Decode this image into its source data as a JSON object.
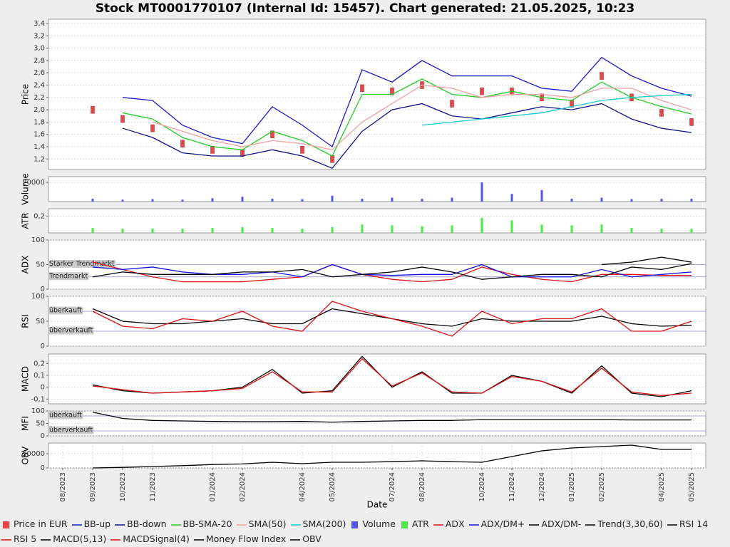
{
  "chart_data": [
    {
      "type": "line",
      "title": "Stock MT0001770107 (Internal Id: 15457). Chart generated: 21.05.2025, 10:23",
      "ylabel": "Price",
      "grid": true,
      "ylim": [
        1.03,
        3.47
      ],
      "yticks": [
        {
          "value": 1.2,
          "label": "1,2"
        },
        {
          "value": 1.4,
          "label": "1,4"
        },
        {
          "value": 1.6,
          "label": "1,6"
        },
        {
          "value": 1.8,
          "label": "1,8"
        },
        {
          "value": 2.0,
          "label": "2,0"
        },
        {
          "value": 2.2,
          "label": "2,2"
        },
        {
          "value": 2.4,
          "label": "2,4"
        },
        {
          "value": 2.6,
          "label": "2,6"
        },
        {
          "value": 2.8,
          "label": "2,8"
        },
        {
          "value": 3.0,
          "label": "3,0"
        },
        {
          "value": 3.2,
          "label": "3,2"
        },
        {
          "value": 3.4,
          "label": "3,4"
        }
      ],
      "xlim": [
        "08/2023",
        "05/2025"
      ],
      "x": [
        "08/2023",
        "09/2023",
        "10/2023",
        "11/2023",
        "12/2023",
        "01/2024",
        "02/2024",
        "03/2024",
        "04/2024",
        "05/2024",
        "06/2024",
        "07/2024",
        "08/2024",
        "09/2024",
        "10/2024",
        "11/2024",
        "12/2024",
        "01/2025",
        "02/2025",
        "03/2025",
        "04/2025",
        "05/2025"
      ],
      "series": [
        {
          "name": "Price in EUR",
          "style": "candles",
          "color": "#e8474a",
          "values": [
            null,
            2.0,
            1.85,
            1.7,
            1.45,
            1.35,
            1.3,
            1.6,
            1.35,
            1.2,
            2.35,
            2.3,
            2.4,
            2.1,
            2.3,
            2.3,
            2.2,
            2.1,
            2.55,
            2.2,
            1.95,
            1.8
          ]
        },
        {
          "name": "BB-up",
          "style": "line",
          "color": "#1a1acc",
          "values": [
            null,
            null,
            2.2,
            2.15,
            1.75,
            1.55,
            1.45,
            2.05,
            1.75,
            1.4,
            2.65,
            2.45,
            2.8,
            2.55,
            2.55,
            2.55,
            2.35,
            2.3,
            2.85,
            2.55,
            2.35,
            2.22
          ]
        },
        {
          "name": "BB-down",
          "style": "line",
          "color": "#10108a",
          "values": [
            null,
            null,
            1.7,
            1.55,
            1.3,
            1.25,
            1.25,
            1.35,
            1.25,
            1.05,
            1.65,
            2.0,
            2.1,
            1.9,
            1.85,
            1.95,
            2.05,
            2.0,
            2.1,
            1.85,
            1.7,
            1.63
          ]
        },
        {
          "name": "BB-SMA-20",
          "style": "line",
          "color": "#22cc22",
          "values": [
            null,
            null,
            1.95,
            1.85,
            1.55,
            1.4,
            1.35,
            1.65,
            1.5,
            1.25,
            2.25,
            2.25,
            2.5,
            2.25,
            2.2,
            2.3,
            2.2,
            2.15,
            2.45,
            2.2,
            2.05,
            1.93
          ]
        },
        {
          "name": "SMA(50)",
          "style": "line",
          "color": "#f0a0a0",
          "values": [
            null,
            null,
            null,
            1.8,
            1.65,
            1.5,
            1.4,
            1.5,
            1.45,
            1.35,
            1.8,
            2.1,
            2.4,
            2.35,
            2.2,
            2.25,
            2.25,
            2.2,
            2.35,
            2.35,
            2.15,
            2.0
          ]
        },
        {
          "name": "SMA(200)",
          "style": "line",
          "color": "#11cccc",
          "values": [
            null,
            null,
            null,
            null,
            null,
            null,
            null,
            null,
            null,
            null,
            null,
            null,
            1.75,
            1.8,
            1.85,
            1.9,
            1.95,
            2.05,
            2.15,
            2.2,
            2.23,
            2.25
          ]
        }
      ]
    },
    {
      "type": "line",
      "ylabel": "Volume",
      "grid": true,
      "ylim": [
        0,
        26000
      ],
      "yticks": [
        20000
      ],
      "xlim": [
        "08/2023",
        "05/2025"
      ],
      "x": [
        "08/2023",
        "09/2023",
        "10/2023",
        "11/2023",
        "12/2023",
        "01/2024",
        "02/2024",
        "03/2024",
        "04/2024",
        "05/2024",
        "06/2024",
        "07/2024",
        "08/2024",
        "09/2024",
        "10/2024",
        "11/2024",
        "12/2024",
        "01/2025",
        "02/2025",
        "03/2025",
        "04/2025",
        "05/2025"
      ],
      "series": [
        {
          "name": "Volume",
          "style": "bars",
          "color": "#5555ee",
          "values": [
            null,
            3000,
            2000,
            2500,
            2000,
            3500,
            5000,
            3000,
            2500,
            6000,
            3000,
            4000,
            3000,
            4000,
            20000,
            8000,
            12000,
            3000,
            4000,
            2500,
            3000,
            3000
          ]
        }
      ]
    },
    {
      "type": "line",
      "ylabel": "ATR",
      "grid": true,
      "ylim": [
        0,
        0.29
      ],
      "yticks": [
        {
          "value": 0.2,
          "label": "0,2"
        }
      ],
      "xlim": [
        "08/2023",
        "05/2025"
      ],
      "x": [
        "08/2023",
        "09/2023",
        "10/2023",
        "11/2023",
        "12/2023",
        "01/2024",
        "02/2024",
        "03/2024",
        "04/2024",
        "05/2024",
        "06/2024",
        "07/2024",
        "08/2024",
        "09/2024",
        "10/2024",
        "11/2024",
        "12/2024",
        "01/2025",
        "02/2025",
        "03/2025",
        "04/2025",
        "05/2025"
      ],
      "series": [
        {
          "name": "ATR",
          "style": "bars",
          "color": "#44ee44",
          "values": [
            null,
            0.06,
            0.05,
            0.05,
            0.05,
            0.06,
            0.07,
            0.06,
            0.05,
            0.07,
            0.1,
            0.09,
            0.08,
            0.09,
            0.18,
            0.15,
            0.1,
            0.09,
            0.1,
            0.06,
            0.05,
            0.05
          ]
        }
      ]
    },
    {
      "type": "line",
      "ylabel": "ADX",
      "grid": true,
      "ylim": [
        0,
        100
      ],
      "yticks": [
        0,
        50,
        100
      ],
      "xlim": [
        "08/2023",
        "05/2025"
      ],
      "hlines": [
        {
          "value": 50,
          "label": "Starker Trendmarkt"
        },
        {
          "value": 25,
          "label": "Trendmarkt"
        }
      ],
      "x": [
        "08/2023",
        "09/2023",
        "10/2023",
        "11/2023",
        "12/2023",
        "01/2024",
        "02/2024",
        "03/2024",
        "04/2024",
        "05/2024",
        "06/2024",
        "07/2024",
        "08/2024",
        "09/2024",
        "10/2024",
        "11/2024",
        "12/2024",
        "01/2025",
        "02/2025",
        "03/2025",
        "04/2025",
        "05/2025"
      ],
      "series": [
        {
          "name": "ADX",
          "style": "line",
          "color": "#e01010",
          "values": [
            null,
            55,
            40,
            25,
            15,
            15,
            15,
            20,
            25,
            50,
            30,
            20,
            15,
            20,
            45,
            30,
            20,
            15,
            30,
            30,
            28,
            28
          ]
        },
        {
          "name": "ADX/DM+",
          "style": "line",
          "color": "#1010e0",
          "values": [
            null,
            45,
            40,
            45,
            35,
            30,
            30,
            35,
            25,
            50,
            30,
            28,
            30,
            30,
            50,
            25,
            25,
            25,
            40,
            25,
            30,
            35
          ]
        },
        {
          "name": "ADX/DM-",
          "style": "line",
          "color": "#000000",
          "values": [
            null,
            25,
            35,
            30,
            30,
            30,
            35,
            35,
            40,
            25,
            30,
            35,
            45,
            35,
            20,
            25,
            30,
            30,
            25,
            45,
            40,
            52
          ]
        },
        {
          "name": "Trend(3,30,60)",
          "style": "line",
          "color": "#000000",
          "values": [
            null,
            null,
            null,
            null,
            null,
            null,
            null,
            null,
            null,
            null,
            null,
            null,
            null,
            null,
            null,
            null,
            null,
            null,
            50,
            55,
            65,
            55
          ]
        }
      ]
    },
    {
      "type": "line",
      "ylabel": "RSI",
      "grid": true,
      "ylim": [
        0,
        100
      ],
      "yticks": [
        0,
        50,
        100
      ],
      "xlim": [
        "08/2023",
        "05/2025"
      ],
      "hlines": [
        {
          "value": 70,
          "label": "überkauft"
        },
        {
          "value": 30,
          "label": "überverkauft"
        }
      ],
      "x": [
        "08/2023",
        "09/2023",
        "10/2023",
        "11/2023",
        "12/2023",
        "01/2024",
        "02/2024",
        "03/2024",
        "04/2024",
        "05/2024",
        "06/2024",
        "07/2024",
        "08/2024",
        "09/2024",
        "10/2024",
        "11/2024",
        "12/2024",
        "01/2025",
        "02/2025",
        "03/2025",
        "04/2025",
        "05/2025"
      ],
      "series": [
        {
          "name": "RSI 14",
          "style": "line",
          "color": "#000000",
          "values": [
            null,
            75,
            50,
            45,
            45,
            50,
            55,
            45,
            45,
            75,
            65,
            55,
            45,
            40,
            55,
            50,
            50,
            50,
            60,
            45,
            40,
            42
          ]
        },
        {
          "name": "RSI 5",
          "style": "line",
          "color": "#e01010",
          "values": [
            null,
            70,
            40,
            35,
            55,
            50,
            70,
            40,
            30,
            90,
            70,
            55,
            40,
            20,
            70,
            45,
            55,
            55,
            75,
            30,
            30,
            50
          ]
        }
      ]
    },
    {
      "type": "line",
      "ylabel": "MACD",
      "grid": true,
      "ylim": [
        -0.14,
        0.28
      ],
      "yticks": [
        {
          "value": -0.1,
          "label": "-0,1"
        },
        0,
        {
          "value": 0.1,
          "label": "0,1"
        },
        {
          "value": 0.2,
          "label": "0,2"
        }
      ],
      "xlim": [
        "08/2023",
        "05/2025"
      ],
      "x": [
        "08/2023",
        "09/2023",
        "10/2023",
        "11/2023",
        "12/2023",
        "01/2024",
        "02/2024",
        "03/2024",
        "04/2024",
        "05/2024",
        "06/2024",
        "07/2024",
        "08/2024",
        "09/2024",
        "10/2024",
        "11/2024",
        "12/2024",
        "01/2025",
        "02/2025",
        "03/2025",
        "04/2025",
        "05/2025"
      ],
      "series": [
        {
          "name": "MACD(5,13)",
          "style": "line",
          "color": "#000000",
          "values": [
            null,
            0.02,
            -0.03,
            -0.05,
            -0.04,
            -0.03,
            0.0,
            0.15,
            -0.05,
            -0.03,
            0.26,
            0.0,
            0.13,
            -0.05,
            -0.05,
            0.1,
            0.05,
            -0.05,
            0.18,
            -0.05,
            -0.08,
            -0.03
          ]
        },
        {
          "name": "MACDSignal(4)",
          "style": "line",
          "color": "#e01010",
          "values": [
            null,
            0.01,
            -0.02,
            -0.05,
            -0.04,
            -0.03,
            -0.01,
            0.13,
            -0.04,
            -0.04,
            0.24,
            0.01,
            0.12,
            -0.04,
            -0.05,
            0.09,
            0.05,
            -0.04,
            0.16,
            -0.04,
            -0.07,
            -0.05
          ]
        }
      ]
    },
    {
      "type": "line",
      "ylabel": "MFI",
      "grid": true,
      "ylim": [
        0,
        100
      ],
      "yticks": [
        0,
        50,
        100
      ],
      "xlim": [
        "08/2023",
        "05/2025"
      ],
      "hlines": [
        {
          "value": 80,
          "label": "überkauft"
        },
        {
          "value": 20,
          "label": "überverkauft"
        }
      ],
      "x": [
        "08/2023",
        "09/2023",
        "10/2023",
        "11/2023",
        "12/2023",
        "01/2024",
        "02/2024",
        "03/2024",
        "04/2024",
        "05/2024",
        "06/2024",
        "07/2024",
        "08/2024",
        "09/2024",
        "10/2024",
        "11/2024",
        "12/2024",
        "01/2025",
        "02/2025",
        "03/2025",
        "04/2025",
        "05/2025"
      ],
      "series": [
        {
          "name": "Money Flow Index",
          "style": "line",
          "color": "#000000",
          "values": [
            null,
            95,
            70,
            62,
            60,
            58,
            57,
            57,
            58,
            55,
            58,
            60,
            62,
            62,
            65,
            65,
            65,
            65,
            65,
            64,
            64,
            64
          ]
        }
      ]
    },
    {
      "type": "line",
      "ylabel": "OBV",
      "xlabel": "Date",
      "grid": true,
      "ylim": [
        0,
        87500
      ],
      "yticks": [
        0,
        50000
      ],
      "xlim": [
        "08/2023",
        "05/2025"
      ],
      "xticks": [
        "08/2023",
        "09/2023",
        "10/2023",
        "11/2023",
        "01/2024",
        "02/2024",
        "04/2024",
        "05/2024",
        "07/2024",
        "08/2024",
        "10/2024",
        "11/2024",
        "12/2024",
        "01/2025",
        "02/2025",
        "04/2025",
        "05/2025"
      ],
      "x": [
        "08/2023",
        "09/2023",
        "10/2023",
        "11/2023",
        "12/2023",
        "01/2024",
        "02/2024",
        "03/2024",
        "04/2024",
        "05/2024",
        "06/2024",
        "07/2024",
        "08/2024",
        "09/2024",
        "10/2024",
        "11/2024",
        "12/2024",
        "01/2025",
        "02/2025",
        "03/2025",
        "04/2025",
        "05/2025"
      ],
      "series": [
        {
          "name": "OBV",
          "style": "line",
          "color": "#000000",
          "values": [
            null,
            0,
            2000,
            5000,
            8000,
            12000,
            14000,
            20000,
            15000,
            20000,
            20000,
            22000,
            25000,
            22000,
            20000,
            40000,
            60000,
            70000,
            75000,
            80000,
            65000,
            65000
          ]
        }
      ]
    }
  ]
}
